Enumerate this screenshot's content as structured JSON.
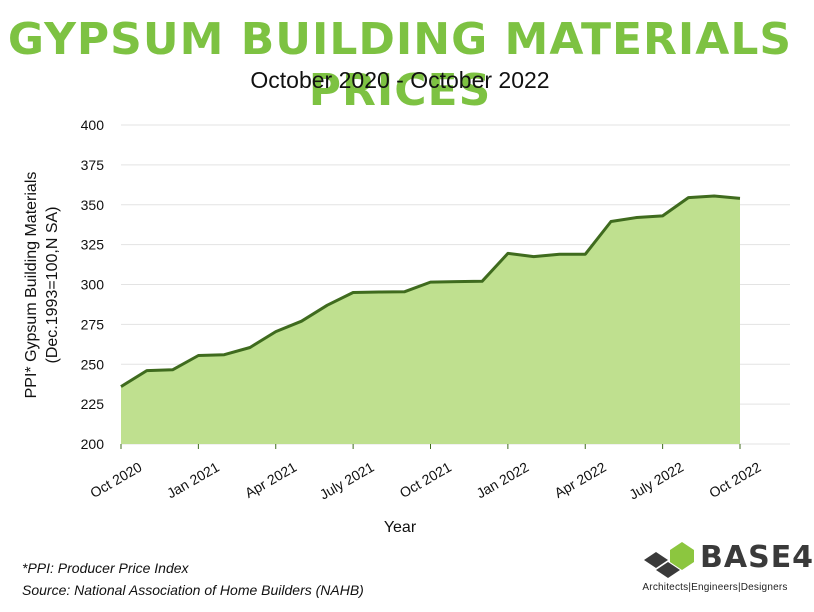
{
  "colors": {
    "title": "#7dc242",
    "area_fill": "#bfe08f",
    "line": "#3f6b1e",
    "grid": "#e3e3e3",
    "logo_green": "#8cc63f",
    "logo_dark": "#3a3a3a"
  },
  "logo": {
    "name": "BASE4",
    "tagline": "Architects|Engineers|Designers"
  },
  "footnotes": {
    "ppi": "*PPI: Producer Price Index",
    "source": "Source: National Association of Home Builders (NAHB)"
  },
  "chart_data": {
    "type": "area",
    "title": "GYPSUM BUILDING MATERIALS PRICES",
    "subtitle": "October 2020 - October 2022",
    "xlabel": "Year",
    "ylabel": [
      "PPI* Gypsum Building Materials",
      "(Dec.1993=100,N SA)"
    ],
    "ylim": [
      200,
      400
    ],
    "yticks": [
      200,
      225,
      250,
      275,
      300,
      325,
      350,
      375,
      400
    ],
    "grid": true,
    "x": [
      "Oct 2020",
      "Nov 2020",
      "Dec 2020",
      "Jan 2021",
      "Feb 2021",
      "Mar 2021",
      "Apr 2021",
      "May 2021",
      "Jun 2021",
      "July 2021",
      "Aug 2021",
      "Sep 2021",
      "Oct 2021",
      "Nov 2021",
      "Dec 2021",
      "Jan 2022",
      "Feb 2022",
      "Mar 2022",
      "Apr 2022",
      "May 2022",
      "Jun 2022",
      "July 2022",
      "Aug 2022",
      "Sep 2022",
      "Oct 2022"
    ],
    "xtick_labels": [
      {
        "index": 0,
        "label": "Oct 2020"
      },
      {
        "index": 3,
        "label": "Jan 2021"
      },
      {
        "index": 6,
        "label": "Apr 2021"
      },
      {
        "index": 9,
        "label": "July 2021"
      },
      {
        "index": 12,
        "label": "Oct 2021"
      },
      {
        "index": 15,
        "label": "Jan 2022"
      },
      {
        "index": 18,
        "label": "Apr 2022"
      },
      {
        "index": 21,
        "label": "July 2022"
      },
      {
        "index": 24,
        "label": "Oct 2022"
      }
    ],
    "values": [
      236,
      246,
      246.5,
      255.5,
      256,
      260.5,
      270.5,
      277,
      287,
      295,
      295.3,
      295.5,
      301.5,
      301.8,
      302,
      319.5,
      317.5,
      319,
      319,
      339.5,
      342,
      343,
      354.5,
      355.5,
      354
    ]
  }
}
